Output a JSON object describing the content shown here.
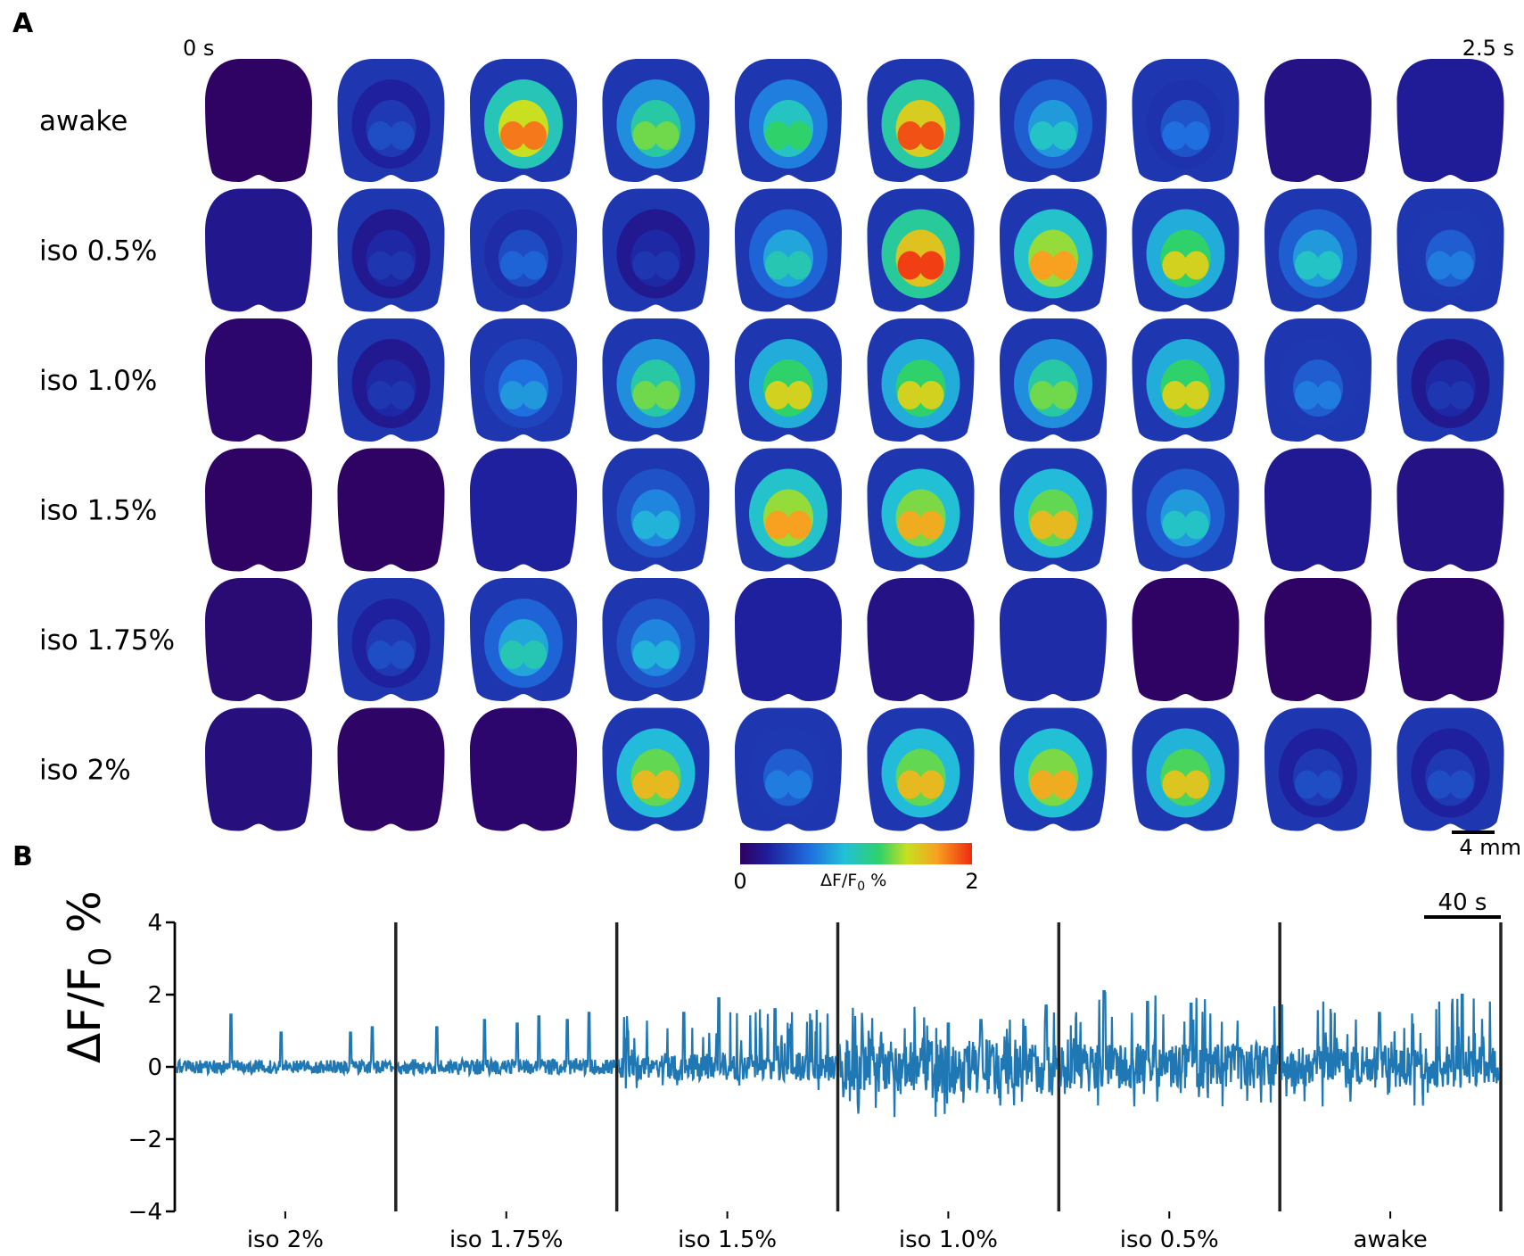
{
  "panels": {
    "a": "A",
    "b": "B"
  },
  "panel_a": {
    "time_start_label": "0 s",
    "time_end_label": "2.5 s",
    "rows": [
      {
        "label": "awake",
        "frames": [
          0.02,
          0.45,
          1.8,
          1.3,
          1.2,
          1.9,
          0.95,
          0.6,
          0.15,
          0.22
        ]
      },
      {
        "label": "iso 0.5%",
        "frames": [
          0.18,
          0.35,
          0.55,
          0.35,
          1.0,
          1.95,
          1.7,
          1.5,
          0.95,
          0.65
        ]
      },
      {
        "label": "iso 1.0%",
        "frames": [
          0.05,
          0.35,
          0.75,
          1.3,
          1.5,
          1.5,
          1.3,
          1.5,
          0.65,
          0.35
        ]
      },
      {
        "label": "iso 1.5%",
        "frames": [
          0.02,
          0.02,
          0.25,
          0.85,
          1.7,
          1.65,
          1.6,
          0.95,
          0.2,
          0.15
        ]
      },
      {
        "label": "iso 1.75%",
        "frames": [
          0.08,
          0.45,
          1.0,
          0.85,
          0.25,
          0.15,
          0.3,
          0.02,
          0.02,
          0.05
        ]
      },
      {
        "label": "iso 2%",
        "frames": [
          0.12,
          0.03,
          0.05,
          1.6,
          0.65,
          1.6,
          1.65,
          1.55,
          0.45,
          0.45
        ]
      }
    ],
    "colorbar": {
      "min": "0",
      "max": "2",
      "label": "ΔF/F",
      "label_sub": "0",
      "label_unit": " %"
    },
    "scalebar_label": "4 mm"
  },
  "chart_data": {
    "type": "line",
    "title": "",
    "ylabel": "ΔF/F",
    "ylabel_sub": "0",
    "ylabel_unit": " %",
    "ylim": [
      -4,
      4
    ],
    "yticks": [
      4,
      2,
      0,
      -2,
      -4
    ],
    "scalebar_label": "40 s",
    "segments": [
      {
        "name": "iso 2%",
        "baseline_lo": -0.45,
        "baseline_hi": 0.35,
        "spikes": [
          {
            "t": 0.25,
            "y": 1.45
          },
          {
            "t": 0.48,
            "y": 0.95
          },
          {
            "t": 0.8,
            "y": 0.95
          },
          {
            "t": 0.9,
            "y": 1.1
          }
        ]
      },
      {
        "name": "iso 1.75%",
        "baseline_lo": -0.5,
        "baseline_hi": 0.4,
        "spikes": [
          {
            "t": 0.18,
            "y": 1.1
          },
          {
            "t": 0.4,
            "y": 1.3
          },
          {
            "t": 0.55,
            "y": 1.2
          },
          {
            "t": 0.65,
            "y": 1.4
          },
          {
            "t": 0.78,
            "y": 1.3
          },
          {
            "t": 0.88,
            "y": 1.5
          }
        ]
      },
      {
        "name": "iso 1.5%",
        "baseline_lo": -0.7,
        "baseline_hi": 1.6,
        "spikes": [
          {
            "t": 0.3,
            "y": 1.5
          },
          {
            "t": 0.46,
            "y": 1.9
          },
          {
            "t": 0.72,
            "y": 1.6
          }
        ]
      },
      {
        "name": "iso 1.0%",
        "baseline_lo": -1.4,
        "baseline_hi": 1.7,
        "spikes": [
          {
            "t": 0.5,
            "y": 1.2
          },
          {
            "t": 0.65,
            "y": 1.3
          },
          {
            "t": 0.95,
            "y": 1.7
          }
        ]
      },
      {
        "name": "iso 0.5%",
        "baseline_lo": -1.15,
        "baseline_hi": 2.1,
        "spikes": [
          {
            "t": 0.2,
            "y": 2.1
          },
          {
            "t": 0.4,
            "y": 1.8
          },
          {
            "t": 0.6,
            "y": 1.75
          }
        ]
      },
      {
        "name": "awake",
        "baseline_lo": -1.1,
        "baseline_hi": 2.0,
        "spikes": [
          {
            "t": 0.45,
            "y": 1.5
          },
          {
            "t": 0.83,
            "y": 2.0
          }
        ]
      }
    ],
    "series_color": "#1f77b4"
  }
}
